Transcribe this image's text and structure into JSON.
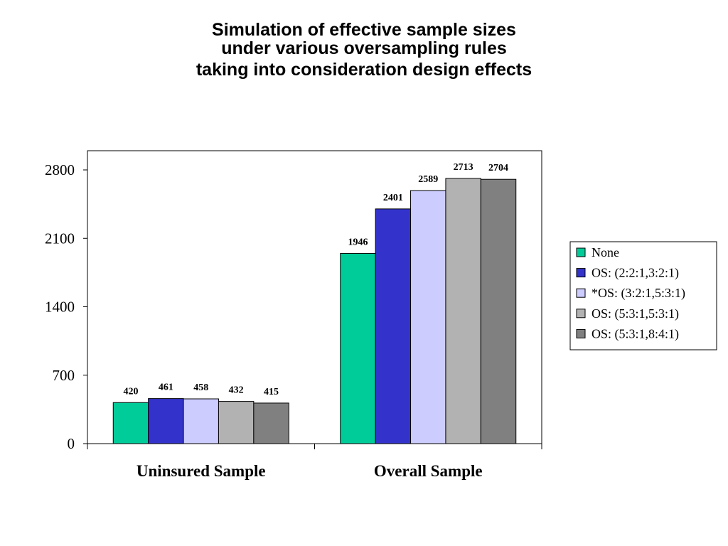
{
  "title_lines": [
    "Simulation of effective sample sizes",
    "under various oversampling rules",
    "taking into consideration design effects"
  ],
  "chart_data": {
    "type": "bar",
    "title": "Simulation of effective sample sizes under various oversampling rules taking into consideration design effects",
    "categories": [
      "Uninsured Sample",
      "Overall Sample"
    ],
    "series": [
      {
        "name": "None",
        "color": "#00CC99",
        "values": [
          420,
          1946
        ]
      },
      {
        "name": "OS: (2:2:1,3:2:1)",
        "color": "#3333CC",
        "values": [
          461,
          2401
        ]
      },
      {
        "name": "*OS: (3:2:1,5:3:1)",
        "color": "#CCCCFF",
        "values": [
          458,
          2589
        ]
      },
      {
        "name": "OS: (5:3:1,5:3:1)",
        "color": "#B2B2B2",
        "values": [
          432,
          2713
        ]
      },
      {
        "name": "OS: (5:3:1,8:4:1)",
        "color": "#808080",
        "values": [
          415,
          2704
        ]
      }
    ],
    "ylim": [
      0,
      3000
    ],
    "yticks": [
      0,
      700,
      1400,
      2100,
      2800
    ],
    "xlabel": "",
    "ylabel": "",
    "grid": false,
    "legend_position": "right"
  }
}
